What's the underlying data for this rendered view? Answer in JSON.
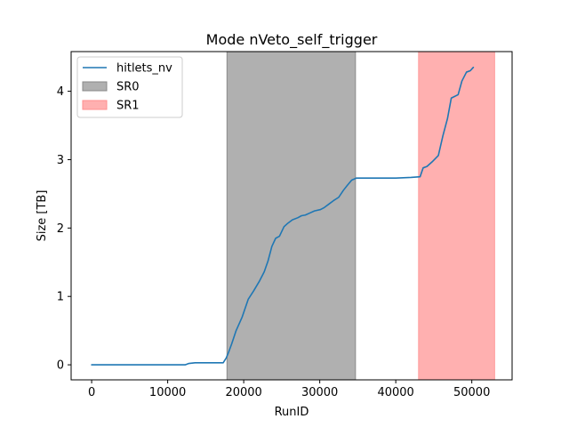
{
  "chart_data": {
    "type": "line",
    "title": "Mode nVeto_self_trigger",
    "xlabel": "RunID",
    "ylabel": "Size [TB]",
    "xlim": [
      -2700,
      55300
    ],
    "ylim": [
      -0.22,
      4.58
    ],
    "xticks": [
      0,
      10000,
      20000,
      30000,
      40000,
      50000
    ],
    "xtick_labels": [
      "0",
      "10000",
      "20000",
      "30000",
      "40000",
      "50000"
    ],
    "yticks": [
      0,
      1,
      2,
      3,
      4
    ],
    "ytick_labels": [
      "0",
      "1",
      "2",
      "3",
      "4"
    ],
    "grid": false,
    "legend_position": "top-left",
    "series": [
      {
        "name": "hitlets_nv",
        "color": "#1f77b4",
        "x": [
          0,
          12300,
          12800,
          13600,
          14400,
          15200,
          16500,
          17300,
          17700,
          18000,
          18400,
          19000,
          19800,
          20600,
          21300,
          22100,
          22700,
          23200,
          23700,
          24200,
          24700,
          25300,
          25800,
          26400,
          27100,
          27600,
          28100,
          28700,
          29300,
          30100,
          30600,
          31200,
          31800,
          32500,
          33100,
          33600,
          34200,
          34800,
          35300,
          36000,
          38000,
          40000,
          42000,
          43200,
          43600,
          44100,
          44800,
          45600,
          46200,
          46800,
          47300,
          48200,
          48700,
          49300,
          49800,
          50200
        ],
        "y": [
          0.0,
          0.0,
          0.02,
          0.03,
          0.03,
          0.03,
          0.03,
          0.03,
          0.1,
          0.18,
          0.3,
          0.5,
          0.7,
          0.96,
          1.08,
          1.23,
          1.36,
          1.52,
          1.73,
          1.85,
          1.88,
          2.02,
          2.07,
          2.12,
          2.15,
          2.18,
          2.19,
          2.22,
          2.25,
          2.27,
          2.3,
          2.35,
          2.4,
          2.45,
          2.55,
          2.62,
          2.7,
          2.73,
          2.73,
          2.73,
          2.73,
          2.73,
          2.74,
          2.75,
          2.88,
          2.9,
          2.97,
          3.06,
          3.35,
          3.6,
          3.9,
          3.95,
          4.15,
          4.28,
          4.3,
          4.35
        ]
      }
    ],
    "bands": [
      {
        "name": "SR0",
        "x_start": 17800,
        "x_end": 34700,
        "color": "#b0b0b0"
      },
      {
        "name": "SR1",
        "x_start": 43000,
        "x_end": 53000,
        "color": "#ffb0b0"
      }
    ],
    "legend": {
      "entries": [
        {
          "label": "hitlets_nv",
          "kind": "line",
          "color": "#1f77b4"
        },
        {
          "label": "SR0",
          "kind": "patch",
          "color": "#b0b0b0",
          "edge": "#888888"
        },
        {
          "label": "SR1",
          "kind": "patch",
          "color": "#ffb0b0",
          "edge": "#ff8f8f"
        }
      ]
    }
  }
}
